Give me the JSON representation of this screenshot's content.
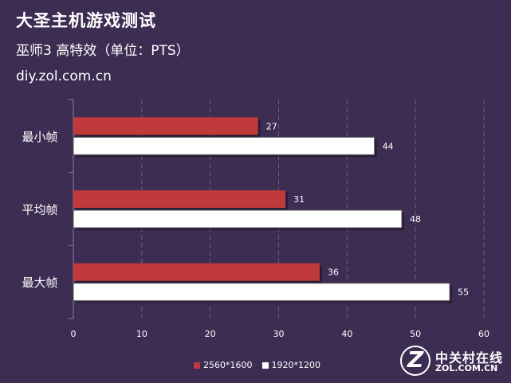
{
  "header": {
    "title": "大圣主机游戏测试",
    "subtitle": "巫师3 高特效（单位：PTS）",
    "source": "diy.zol.com.cn"
  },
  "logo": {
    "cn": "中关村在线",
    "en": "ZOL.COM.CN",
    "mark": "Z"
  },
  "chart_data": {
    "type": "bar",
    "orientation": "horizontal",
    "categories": [
      "最小帧",
      "平均帧",
      "最大帧"
    ],
    "series": [
      {
        "name": "2560*1600",
        "values": [
          27,
          31,
          36
        ],
        "color": "#c0393b"
      },
      {
        "name": "1920*1200",
        "values": [
          44,
          48,
          55
        ],
        "color": "#ffffff"
      }
    ],
    "xlim": [
      0,
      60
    ],
    "xticks": [
      0,
      10,
      20,
      30,
      40,
      50,
      60
    ],
    "grid": "vertical dashed",
    "legend_position": "bottom",
    "data_labels": true
  }
}
